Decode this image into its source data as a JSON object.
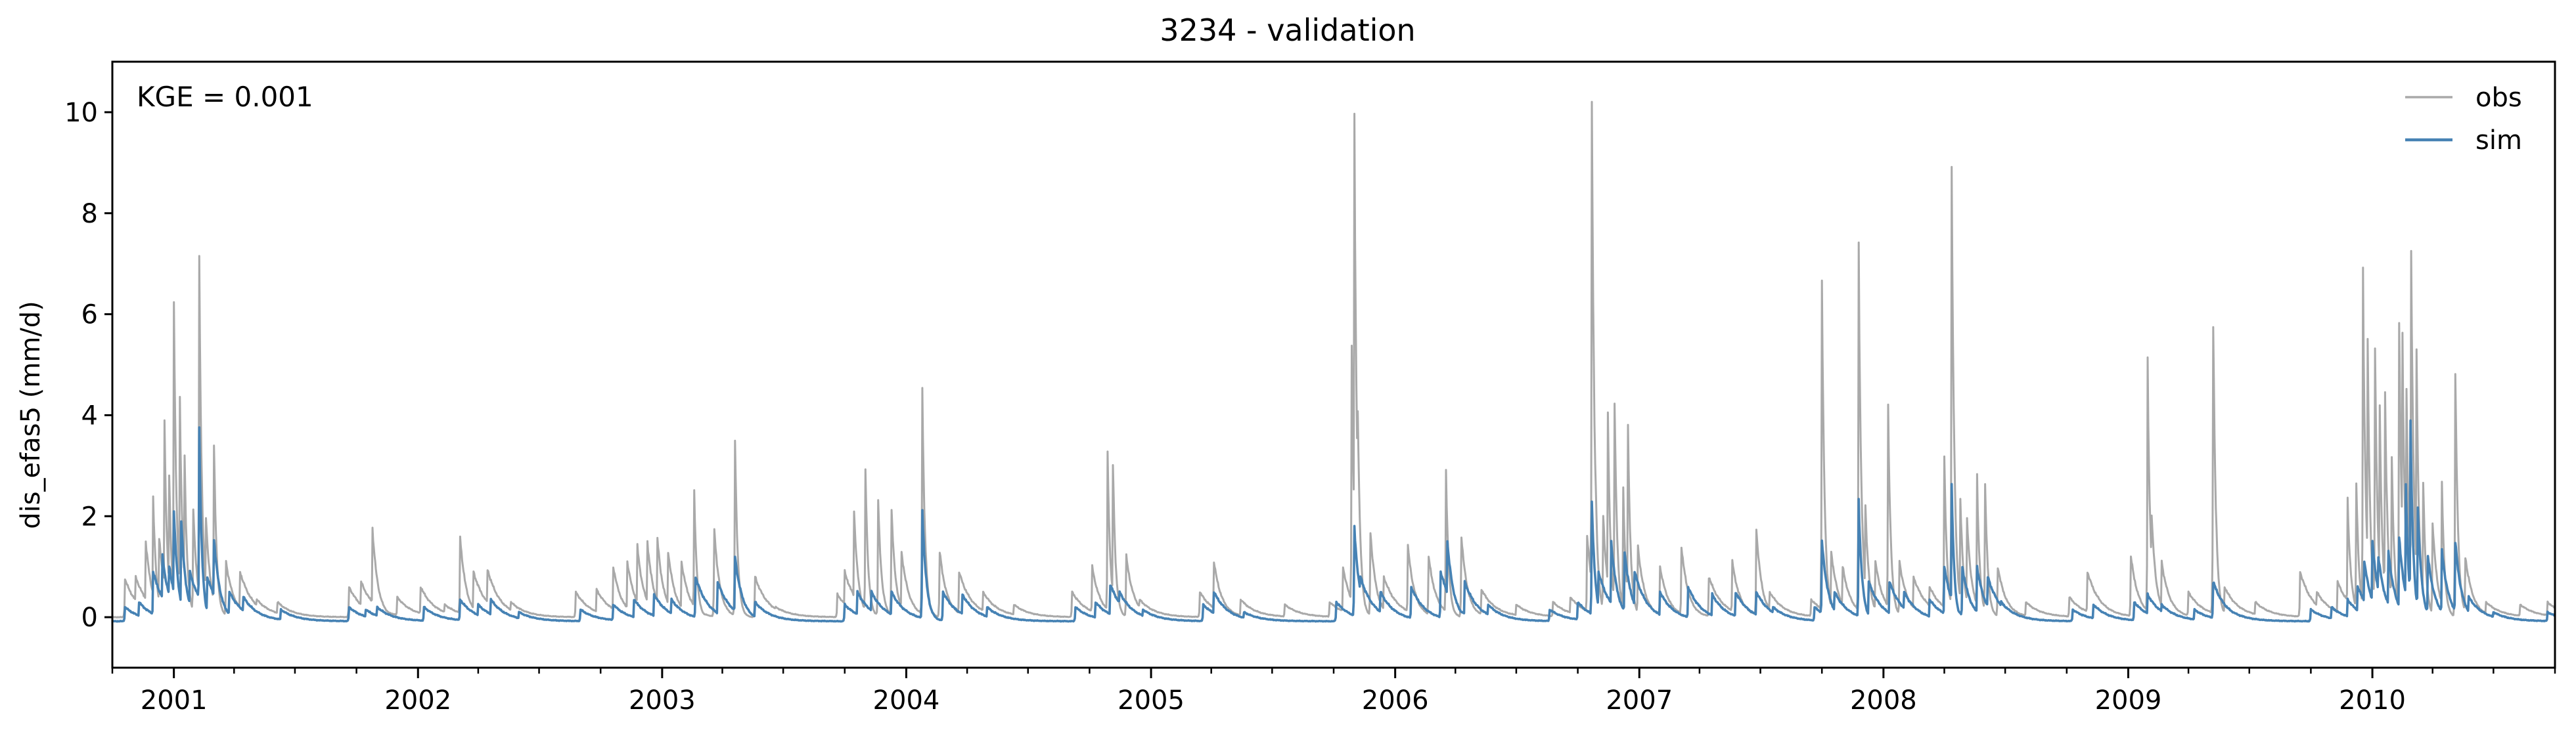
{
  "chart_data": {
    "type": "line",
    "title": "3234 - validation",
    "xlabel": "",
    "ylabel": "dis_efas5 (mm/d)",
    "annotation": "KGE = 0.001",
    "xlim": [
      "2000-10-01",
      "2010-10-01"
    ],
    "ylim": [
      -1.0,
      11.0
    ],
    "x_major_ticks": [
      {
        "date": "2001-01-01",
        "label": "2001"
      },
      {
        "date": "2002-01-01",
        "label": "2002"
      },
      {
        "date": "2003-01-01",
        "label": "2003"
      },
      {
        "date": "2004-01-01",
        "label": "2004"
      },
      {
        "date": "2005-01-01",
        "label": "2005"
      },
      {
        "date": "2006-01-01",
        "label": "2006"
      },
      {
        "date": "2007-01-01",
        "label": "2007"
      },
      {
        "date": "2008-01-01",
        "label": "2008"
      },
      {
        "date": "2009-01-01",
        "label": "2009"
      },
      {
        "date": "2010-01-01",
        "label": "2010"
      }
    ],
    "y_ticks": [
      0,
      2,
      4,
      6,
      8,
      10
    ],
    "grid": false,
    "legend": {
      "position": "top-right",
      "entries": [
        "obs",
        "sim"
      ]
    },
    "colors": {
      "obs": "#a9a9a9",
      "sim": "#4682b4"
    },
    "series": [
      {
        "name": "obs",
        "baseline": 0.0,
        "peaks": [
          [
            "2000-10-20",
            0.75
          ],
          [
            "2000-11-05",
            0.8
          ],
          [
            "2000-11-20",
            1.5
          ],
          [
            "2000-12-01",
            2.4
          ],
          [
            "2000-12-10",
            1.6
          ],
          [
            "2000-12-18",
            3.9
          ],
          [
            "2000-12-25",
            2.8
          ],
          [
            "2001-01-01",
            6.25
          ],
          [
            "2001-01-10",
            4.35
          ],
          [
            "2001-01-17",
            3.2
          ],
          [
            "2001-01-30",
            2.2
          ],
          [
            "2001-02-08",
            7.05
          ],
          [
            "2001-02-18",
            2.0
          ],
          [
            "2001-03-02",
            3.45
          ],
          [
            "2001-03-20",
            1.1
          ],
          [
            "2001-04-10",
            0.9
          ],
          [
            "2001-05-05",
            0.35
          ],
          [
            "2001-06-05",
            0.3
          ],
          [
            "2001-09-20",
            0.6
          ],
          [
            "2001-10-08",
            0.7
          ],
          [
            "2001-10-25",
            1.75
          ],
          [
            "2001-12-01",
            0.4
          ],
          [
            "2002-01-05",
            0.6
          ],
          [
            "2002-02-10",
            0.25
          ],
          [
            "2002-03-05",
            1.6
          ],
          [
            "2002-03-25",
            0.9
          ],
          [
            "2002-04-15",
            0.95
          ],
          [
            "2002-05-20",
            0.3
          ],
          [
            "2002-08-25",
            0.5
          ],
          [
            "2002-09-25",
            0.55
          ],
          [
            "2002-10-20",
            1.0
          ],
          [
            "2002-11-10",
            1.1
          ],
          [
            "2002-11-25",
            1.4
          ],
          [
            "2002-12-10",
            1.5
          ],
          [
            "2002-12-25",
            1.55
          ],
          [
            "2003-01-10",
            1.3
          ],
          [
            "2003-01-30",
            1.1
          ],
          [
            "2003-02-18",
            2.5
          ],
          [
            "2003-03-20",
            1.75
          ],
          [
            "2003-04-20",
            3.5
          ],
          [
            "2003-05-20",
            0.8
          ],
          [
            "2003-06-20",
            0.2
          ],
          [
            "2003-09-20",
            0.45
          ],
          [
            "2003-10-01",
            0.9
          ],
          [
            "2003-10-15",
            2.1
          ],
          [
            "2003-11-01",
            2.9
          ],
          [
            "2003-11-20",
            2.3
          ],
          [
            "2003-12-10",
            2.1
          ],
          [
            "2003-12-25",
            1.3
          ],
          [
            "2004-01-25",
            4.6
          ],
          [
            "2004-02-20",
            1.3
          ],
          [
            "2004-03-20",
            0.9
          ],
          [
            "2004-04-25",
            0.5
          ],
          [
            "2004-06-10",
            0.25
          ],
          [
            "2004-09-05",
            0.5
          ],
          [
            "2004-10-05",
            1.0
          ],
          [
            "2004-10-28",
            3.3
          ],
          [
            "2004-11-05",
            3.05
          ],
          [
            "2004-11-25",
            1.2
          ],
          [
            "2004-12-15",
            0.35
          ],
          [
            "2005-03-15",
            0.5
          ],
          [
            "2005-04-05",
            1.1
          ],
          [
            "2005-05-15",
            0.35
          ],
          [
            "2005-07-20",
            0.25
          ],
          [
            "2005-09-25",
            0.3
          ],
          [
            "2005-10-15",
            1.0
          ],
          [
            "2005-10-28",
            5.3
          ],
          [
            "2005-11-01",
            9.7
          ],
          [
            "2005-11-06",
            4.2
          ],
          [
            "2005-11-25",
            1.7
          ],
          [
            "2005-12-15",
            0.8
          ],
          [
            "2006-01-20",
            1.4
          ],
          [
            "2006-02-20",
            1.2
          ],
          [
            "2006-03-18",
            2.9
          ],
          [
            "2006-04-10",
            1.6
          ],
          [
            "2006-05-10",
            0.55
          ],
          [
            "2006-07-01",
            0.25
          ],
          [
            "2006-08-25",
            0.3
          ],
          [
            "2006-09-20",
            0.4
          ],
          [
            "2006-10-15",
            1.6
          ],
          [
            "2006-10-22",
            10.45
          ],
          [
            "2006-10-28",
            2.5
          ],
          [
            "2006-11-08",
            2.0
          ],
          [
            "2006-11-15",
            4.0
          ],
          [
            "2006-11-25",
            4.3
          ],
          [
            "2006-12-08",
            2.5
          ],
          [
            "2006-12-15",
            3.75
          ],
          [
            "2006-12-30",
            1.4
          ],
          [
            "2007-02-01",
            1.0
          ],
          [
            "2007-03-05",
            1.4
          ],
          [
            "2007-04-15",
            0.8
          ],
          [
            "2007-05-20",
            1.1
          ],
          [
            "2007-06-25",
            1.75
          ],
          [
            "2007-07-15",
            0.5
          ],
          [
            "2007-09-15",
            0.35
          ],
          [
            "2007-10-01",
            6.6
          ],
          [
            "2007-10-15",
            1.3
          ],
          [
            "2007-11-01",
            1.0
          ],
          [
            "2007-11-25",
            7.3
          ],
          [
            "2007-12-05",
            2.2
          ],
          [
            "2007-12-20",
            1.1
          ],
          [
            "2008-01-08",
            4.2
          ],
          [
            "2008-01-25",
            1.1
          ],
          [
            "2008-02-15",
            0.8
          ],
          [
            "2008-03-10",
            0.6
          ],
          [
            "2008-04-01",
            3.2
          ],
          [
            "2008-04-12",
            8.8
          ],
          [
            "2008-04-25",
            2.3
          ],
          [
            "2008-05-05",
            1.9
          ],
          [
            "2008-05-20",
            2.8
          ],
          [
            "2008-06-01",
            2.7
          ],
          [
            "2008-06-20",
            1.0
          ],
          [
            "2008-08-01",
            0.3
          ],
          [
            "2008-10-05",
            0.4
          ],
          [
            "2008-11-01",
            0.9
          ],
          [
            "2009-01-05",
            1.2
          ],
          [
            "2009-01-30",
            5.0
          ],
          [
            "2009-02-05",
            2.0
          ],
          [
            "2009-02-20",
            1.1
          ],
          [
            "2009-04-01",
            0.5
          ],
          [
            "2009-05-08",
            5.9
          ],
          [
            "2009-05-25",
            0.6
          ],
          [
            "2009-07-10",
            0.3
          ],
          [
            "2009-09-15",
            0.9
          ],
          [
            "2009-10-10",
            0.5
          ],
          [
            "2009-11-10",
            0.7
          ],
          [
            "2009-11-25",
            2.3
          ],
          [
            "2009-12-08",
            2.7
          ],
          [
            "2009-12-18",
            6.9
          ],
          [
            "2009-12-25",
            5.4
          ],
          [
            "2010-01-05",
            5.3
          ],
          [
            "2010-01-12",
            4.1
          ],
          [
            "2010-01-20",
            4.5
          ],
          [
            "2010-01-30",
            3.2
          ],
          [
            "2010-02-10",
            5.9
          ],
          [
            "2010-02-15",
            5.5
          ],
          [
            "2010-02-21",
            4.5
          ],
          [
            "2010-02-28",
            7.3
          ],
          [
            "2010-03-08",
            5.2
          ],
          [
            "2010-03-18",
            2.7
          ],
          [
            "2010-04-01",
            1.9
          ],
          [
            "2010-04-15",
            2.6
          ],
          [
            "2010-05-05",
            4.9
          ],
          [
            "2010-05-20",
            1.2
          ],
          [
            "2010-06-20",
            0.3
          ],
          [
            "2010-08-10",
            0.25
          ],
          [
            "2010-09-20",
            0.3
          ]
        ]
      },
      {
        "name": "sim",
        "baseline": -0.08,
        "peaks": [
          [
            "2000-10-20",
            0.2
          ],
          [
            "2000-11-10",
            0.3
          ],
          [
            "2000-12-01",
            0.9
          ],
          [
            "2000-12-15",
            1.2
          ],
          [
            "2000-12-25",
            1.0
          ],
          [
            "2001-01-01",
            2.1
          ],
          [
            "2001-01-12",
            1.9
          ],
          [
            "2001-01-25",
            0.9
          ],
          [
            "2001-02-08",
            3.7
          ],
          [
            "2001-02-20",
            0.8
          ],
          [
            "2001-03-02",
            1.55
          ],
          [
            "2001-03-25",
            0.5
          ],
          [
            "2001-04-15",
            0.4
          ],
          [
            "2001-06-10",
            0.15
          ],
          [
            "2001-09-20",
            0.2
          ],
          [
            "2001-10-15",
            0.15
          ],
          [
            "2001-11-01",
            0.2
          ],
          [
            "2002-01-10",
            0.2
          ],
          [
            "2002-03-05",
            0.35
          ],
          [
            "2002-04-01",
            0.25
          ],
          [
            "2002-04-20",
            0.35
          ],
          [
            "2002-06-01",
            0.1
          ],
          [
            "2002-09-01",
            0.15
          ],
          [
            "2002-10-20",
            0.25
          ],
          [
            "2002-11-20",
            0.35
          ],
          [
            "2002-12-20",
            0.45
          ],
          [
            "2003-01-15",
            0.35
          ],
          [
            "2003-02-20",
            0.8
          ],
          [
            "2003-03-25",
            0.7
          ],
          [
            "2003-04-20",
            1.2
          ],
          [
            "2003-05-20",
            0.3
          ],
          [
            "2003-10-01",
            0.25
          ],
          [
            "2003-10-20",
            0.5
          ],
          [
            "2003-11-10",
            0.5
          ],
          [
            "2003-12-10",
            0.5
          ],
          [
            "2004-01-25",
            2.15
          ],
          [
            "2004-02-25",
            0.5
          ],
          [
            "2004-03-25",
            0.45
          ],
          [
            "2004-05-01",
            0.2
          ],
          [
            "2004-09-10",
            0.2
          ],
          [
            "2004-10-10",
            0.3
          ],
          [
            "2004-11-01",
            0.65
          ],
          [
            "2004-11-15",
            0.5
          ],
          [
            "2004-12-20",
            0.15
          ],
          [
            "2005-03-20",
            0.25
          ],
          [
            "2005-04-05",
            0.5
          ],
          [
            "2005-05-20",
            0.1
          ],
          [
            "2005-10-05",
            0.3
          ],
          [
            "2005-11-01",
            1.75
          ],
          [
            "2005-11-10",
            0.8
          ],
          [
            "2005-12-10",
            0.5
          ],
          [
            "2006-01-25",
            0.6
          ],
          [
            "2006-03-10",
            0.9
          ],
          [
            "2006-03-20",
            1.5
          ],
          [
            "2006-04-15",
            0.7
          ],
          [
            "2006-05-20",
            0.25
          ],
          [
            "2006-08-20",
            0.15
          ],
          [
            "2006-10-01",
            0.3
          ],
          [
            "2006-10-22",
            2.35
          ],
          [
            "2006-11-01",
            0.9
          ],
          [
            "2006-11-20",
            1.5
          ],
          [
            "2006-12-10",
            1.3
          ],
          [
            "2006-12-25",
            0.9
          ],
          [
            "2007-02-01",
            0.5
          ],
          [
            "2007-03-15",
            0.6
          ],
          [
            "2007-04-20",
            0.45
          ],
          [
            "2007-05-25",
            0.5
          ],
          [
            "2007-06-25",
            0.5
          ],
          [
            "2007-07-20",
            0.2
          ],
          [
            "2007-09-20",
            0.2
          ],
          [
            "2007-10-01",
            1.5
          ],
          [
            "2007-10-20",
            0.5
          ],
          [
            "2007-11-25",
            2.3
          ],
          [
            "2007-12-10",
            0.7
          ],
          [
            "2008-01-10",
            0.7
          ],
          [
            "2008-02-01",
            0.5
          ],
          [
            "2008-03-10",
            0.35
          ],
          [
            "2008-04-01",
            1.0
          ],
          [
            "2008-04-12",
            2.6
          ],
          [
            "2008-04-28",
            1.0
          ],
          [
            "2008-05-20",
            1.0
          ],
          [
            "2008-06-05",
            0.8
          ],
          [
            "2008-06-25",
            0.3
          ],
          [
            "2008-10-10",
            0.15
          ],
          [
            "2008-11-10",
            0.25
          ],
          [
            "2009-01-10",
            0.3
          ],
          [
            "2009-01-30",
            0.45
          ],
          [
            "2009-02-20",
            0.25
          ],
          [
            "2009-04-10",
            0.15
          ],
          [
            "2009-05-08",
            0.7
          ],
          [
            "2009-06-01",
            0.15
          ],
          [
            "2009-10-01",
            0.15
          ],
          [
            "2009-11-01",
            0.2
          ],
          [
            "2009-11-25",
            0.35
          ],
          [
            "2009-12-10",
            0.6
          ],
          [
            "2009-12-20",
            1.1
          ],
          [
            "2010-01-01",
            1.5
          ],
          [
            "2010-01-10",
            1.2
          ],
          [
            "2010-01-25",
            1.3
          ],
          [
            "2010-02-10",
            1.6
          ],
          [
            "2010-02-20",
            2.7
          ],
          [
            "2010-02-27",
            4.0
          ],
          [
            "2010-03-10",
            2.2
          ],
          [
            "2010-03-25",
            1.2
          ],
          [
            "2010-04-15",
            1.3
          ],
          [
            "2010-05-05",
            1.5
          ],
          [
            "2010-05-25",
            0.4
          ],
          [
            "2010-07-01",
            0.1
          ],
          [
            "2010-09-20",
            0.1
          ]
        ]
      }
    ]
  }
}
